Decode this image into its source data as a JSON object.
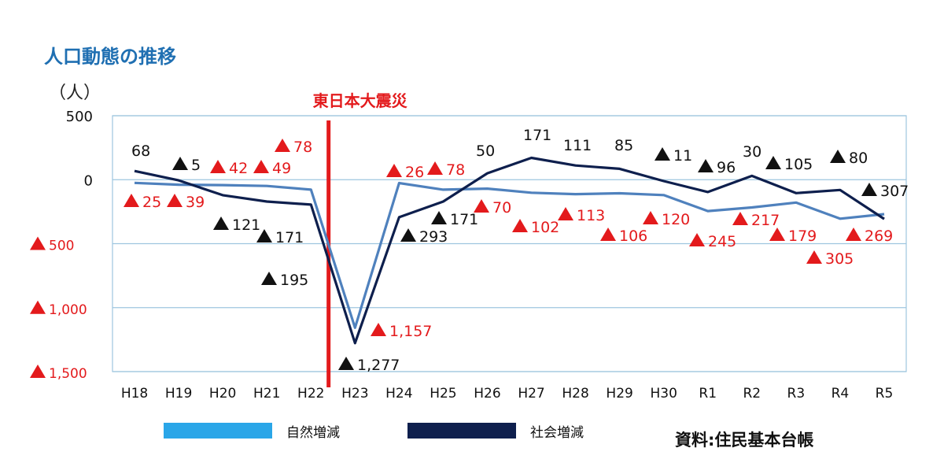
{
  "title": "人口動態の推移",
  "unit": "（人）",
  "source": "資料:住民基本台帳",
  "event_label": "東日本大震災",
  "colors": {
    "natural": "#4f81bd",
    "social": "#0e1f4d",
    "legend_natural": "#2aa6e8",
    "event_line": "#e31a1c",
    "red_text": "#e31a1c",
    "black_text": "#111111",
    "grid": "#9ec6df"
  },
  "chart_data": {
    "type": "line",
    "categories": [
      "H18",
      "H19",
      "H20",
      "H21",
      "H22",
      "H23",
      "H24",
      "H25",
      "H26",
      "H27",
      "H28",
      "H29",
      "H30",
      "R1",
      "R2",
      "R3",
      "R4",
      "R5"
    ],
    "ylim": [
      -1500,
      500
    ],
    "yticks": [
      {
        "value": 500,
        "label": "500",
        "negative": false
      },
      {
        "value": 0,
        "label": "0",
        "negative": false
      },
      {
        "value": -500,
        "label": "▲500",
        "negative": true
      },
      {
        "value": -1000,
        "label": "▲1,000",
        "negative": true
      },
      {
        "value": -1500,
        "label": "▲1,500",
        "negative": true
      }
    ],
    "grid": true,
    "legend_position": "bottom",
    "series": [
      {
        "name": "自然増減",
        "values": [
          -25,
          -39,
          -42,
          -49,
          -78,
          -1157,
          -26,
          -78,
          -70,
          -102,
          -113,
          -106,
          -120,
          -245,
          -217,
          -179,
          -305,
          -269
        ],
        "labels": [
          "▲25",
          "▲39",
          "▲42",
          "▲49",
          "▲78",
          "▲1,157",
          "▲26",
          "▲78",
          "▲70",
          "▲102",
          "▲113",
          "▲106",
          "▲120",
          "▲245",
          "▲217",
          "▲179",
          "▲305",
          "▲269"
        ]
      },
      {
        "name": "社会増減",
        "values": [
          68,
          -5,
          -121,
          -171,
          -195,
          -1277,
          -293,
          -171,
          50,
          171,
          111,
          85,
          -11,
          -96,
          30,
          -105,
          -80,
          -307
        ],
        "labels": [
          "68",
          "▲ 5",
          "▲ 121",
          "▲ 171",
          "▲ 195",
          "▲ 1,277",
          "▲ 293",
          "▲ 171",
          "50",
          "171",
          "111",
          "85",
          "▲ 11",
          "▲ 96",
          "30",
          "▲ 105",
          "▲ 80",
          "▲ 307"
        ]
      }
    ],
    "event_after_category": "H22"
  }
}
